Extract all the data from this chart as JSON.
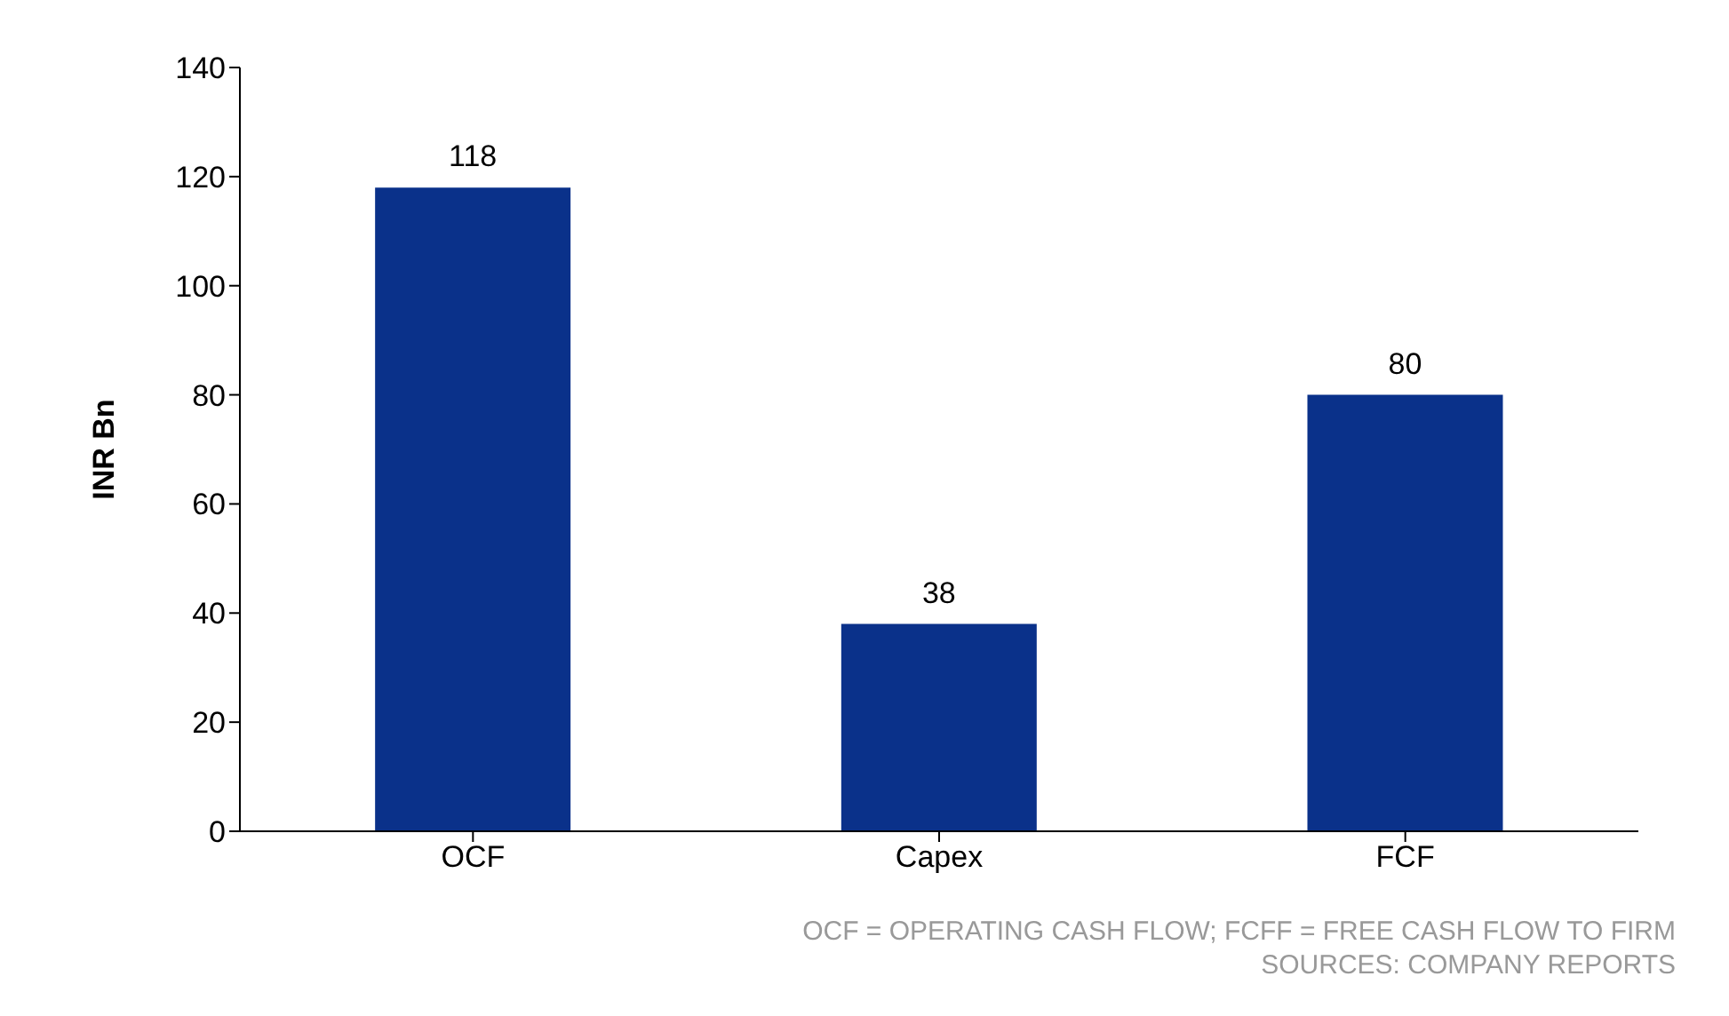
{
  "chart_data": {
    "type": "bar",
    "ylabel": "INR Bn",
    "categories": [
      "OCF",
      "Capex",
      "FCF"
    ],
    "values": [
      118,
      38,
      80
    ],
    "color": "#0a318a",
    "data_labels": true,
    "ylim": [
      0,
      140
    ],
    "yticks": [
      0,
      20,
      40,
      60,
      80,
      100,
      120,
      140
    ],
    "grid": false,
    "legend": false,
    "annotations": [
      "OCF = OPERATING CASH FLOW; FCFF =  FREE CASH FLOW TO FIRM",
      "SOURCES: COMPANY REPORTS"
    ]
  }
}
